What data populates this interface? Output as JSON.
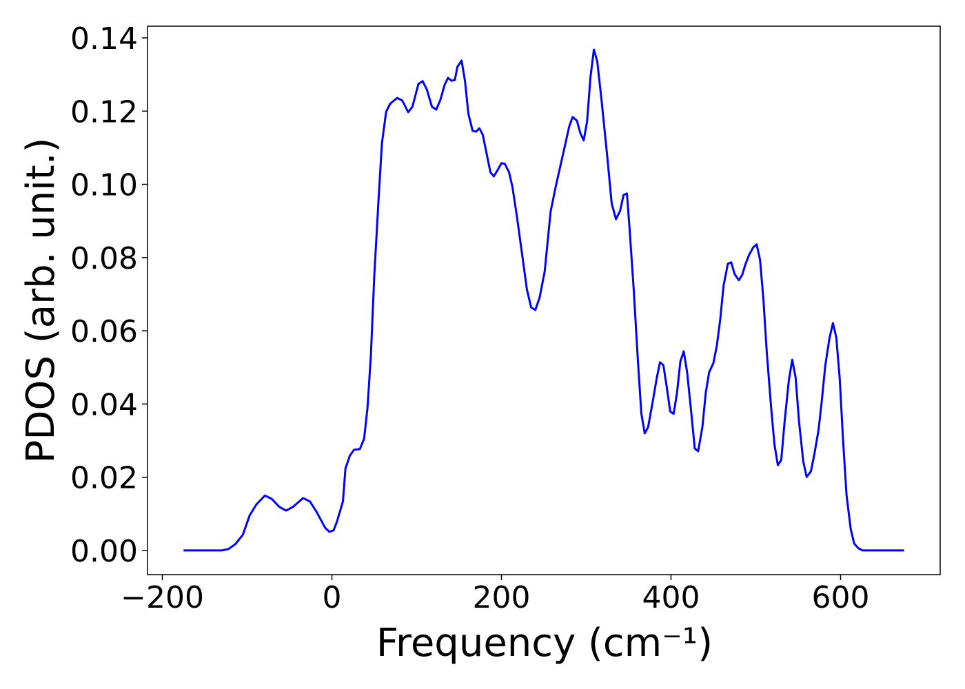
{
  "chart_data": {
    "type": "line",
    "xlabel": "Frequency (cm⁻¹)",
    "ylabel": "PDOS (arb. unit.)",
    "xlim": [
      -217.5,
      717.5
    ],
    "ylim": [
      -0.0066,
      0.1432
    ],
    "xticks": [
      {
        "value": -200,
        "label": "−200"
      },
      0,
      200,
      400,
      600
    ],
    "yticks": [
      {
        "value": 0,
        "label": "0.00"
      },
      {
        "value": 0.02,
        "label": "0.02"
      },
      {
        "value": 0.04,
        "label": "0.04"
      },
      {
        "value": 0.06,
        "label": "0.06"
      },
      {
        "value": 0.08,
        "label": "0.08"
      },
      {
        "value": 0.1,
        "label": "0.10"
      },
      {
        "value": 0.12,
        "label": "0.12"
      },
      {
        "value": 0.14,
        "label": "0.14"
      }
    ],
    "grid": false,
    "x": [
      -175,
      -130,
      -122,
      -114,
      -105,
      -97,
      -89,
      -79,
      -71,
      -62,
      -54,
      -46,
      -34,
      -26,
      -18,
      -8,
      -3,
      2,
      6,
      13,
      16,
      21,
      26,
      33,
      38,
      42,
      46,
      50,
      55,
      59,
      64,
      69,
      77,
      83,
      90,
      95,
      102,
      107,
      112,
      118,
      123,
      128,
      133,
      137,
      141,
      145,
      148,
      153,
      157,
      161,
      166,
      170,
      174,
      178,
      183,
      187,
      191,
      196,
      200,
      204,
      209,
      213,
      218,
      225,
      230,
      235,
      240,
      245,
      251,
      258,
      264,
      272,
      280,
      284,
      289,
      293,
      297,
      301,
      305,
      309,
      313,
      318,
      325,
      330,
      335,
      340,
      344,
      348,
      351,
      356,
      361,
      365,
      369,
      373,
      378,
      383,
      387,
      391,
      395,
      399,
      403,
      407,
      411,
      415,
      419,
      424,
      428,
      432,
      437,
      441,
      445,
      450,
      454,
      458,
      462,
      467,
      471,
      475,
      480,
      484,
      488,
      492,
      497,
      501,
      505,
      509,
      513,
      518,
      522,
      526,
      530,
      534,
      539,
      543,
      547,
      551,
      556,
      560,
      565,
      569,
      574,
      578,
      582,
      587,
      591,
      595,
      599,
      603,
      607,
      612,
      616,
      621,
      626,
      675
    ],
    "series": [
      {
        "name": "PDOS",
        "color": "#0000ff",
        "values": [
          0,
          0,
          0.0004,
          0.0017,
          0.0043,
          0.0096,
          0.0126,
          0.015,
          0.0141,
          0.0119,
          0.0109,
          0.0119,
          0.0143,
          0.0134,
          0.0105,
          0.0062,
          0.0051,
          0.0055,
          0.0079,
          0.0134,
          0.0224,
          0.0258,
          0.0275,
          0.0277,
          0.0305,
          0.039,
          0.0534,
          0.0751,
          0.0958,
          0.1112,
          0.1199,
          0.1221,
          0.1236,
          0.1229,
          0.1197,
          0.1212,
          0.1274,
          0.1282,
          0.1259,
          0.1212,
          0.1204,
          0.1231,
          0.1272,
          0.1291,
          0.1283,
          0.1285,
          0.1321,
          0.1338,
          0.1282,
          0.1193,
          0.1146,
          0.1144,
          0.1153,
          0.1135,
          0.1078,
          0.1033,
          0.1022,
          0.1041,
          0.1058,
          0.1056,
          0.1033,
          0.0992,
          0.0916,
          0.0798,
          0.0713,
          0.0664,
          0.0657,
          0.0691,
          0.0762,
          0.0926,
          0.0994,
          0.1076,
          0.1159,
          0.1184,
          0.1174,
          0.114,
          0.112,
          0.1172,
          0.1293,
          0.1368,
          0.1336,
          0.1231,
          0.1071,
          0.0948,
          0.0905,
          0.0928,
          0.0971,
          0.0975,
          0.0883,
          0.0713,
          0.0516,
          0.0374,
          0.032,
          0.0337,
          0.0401,
          0.0469,
          0.0514,
          0.0506,
          0.0446,
          0.038,
          0.0373,
          0.0429,
          0.0516,
          0.0544,
          0.0487,
          0.0374,
          0.0279,
          0.0271,
          0.0337,
          0.0431,
          0.0487,
          0.0512,
          0.0559,
          0.063,
          0.0723,
          0.0783,
          0.0787,
          0.0755,
          0.0738,
          0.0753,
          0.0783,
          0.0807,
          0.0828,
          0.0836,
          0.0794,
          0.0685,
          0.054,
          0.0393,
          0.029,
          0.0233,
          0.0247,
          0.0352,
          0.0465,
          0.0521,
          0.0472,
          0.0352,
          0.0243,
          0.0201,
          0.0216,
          0.0262,
          0.0329,
          0.0412,
          0.0506,
          0.0581,
          0.0621,
          0.0581,
          0.0469,
          0.0299,
          0.0152,
          0.0058,
          0.0019,
          0.0006,
          0,
          0
        ]
      }
    ]
  }
}
